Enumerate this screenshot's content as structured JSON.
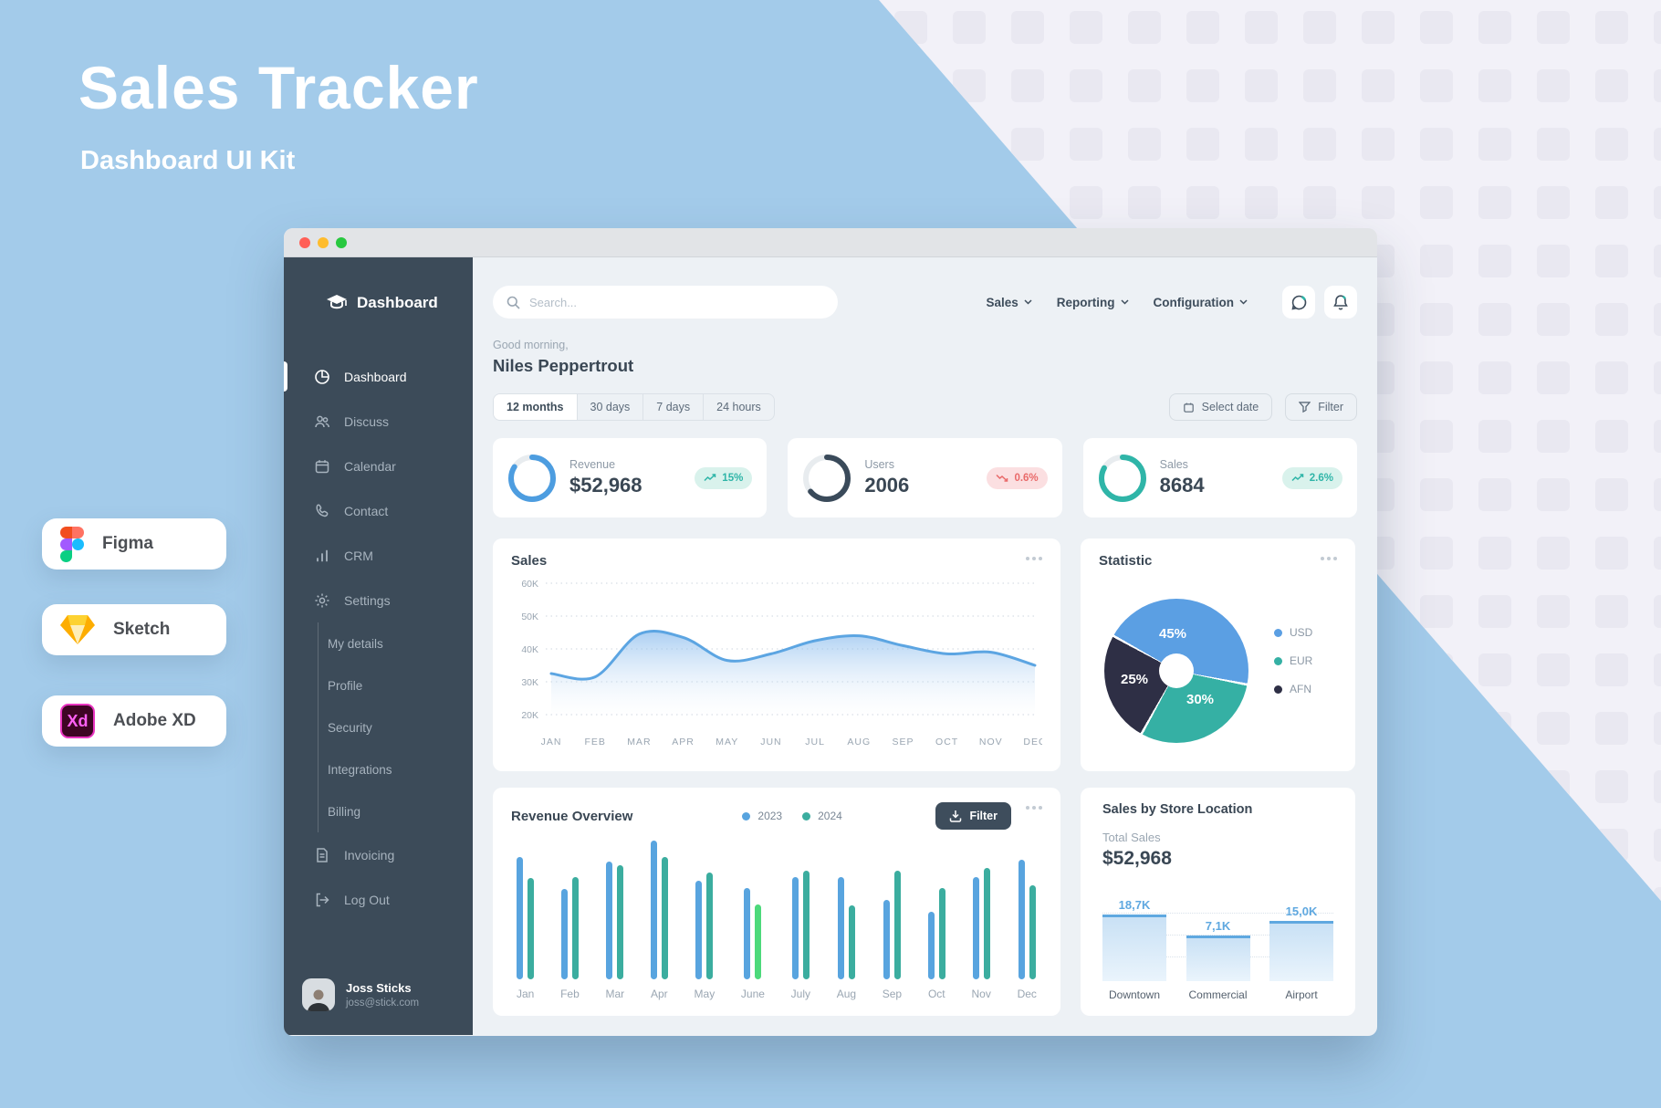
{
  "promo": {
    "title": "Sales Tracker",
    "subtitle": "Dashboard UI Kit",
    "badges": [
      {
        "label": "Figma"
      },
      {
        "label": "Sketch"
      },
      {
        "label": "Adobe XD",
        "logo_text": "Xd"
      }
    ]
  },
  "colors": {
    "accent_blue": "#4D9DE0",
    "teal": "#2FB5A8",
    "sidebar_dark": "#3C4B59",
    "highlight_green": "#4CD97B",
    "negative_red": "#E96A6A",
    "traffic_red": "#FF5F57",
    "traffic_yellow": "#FEBC2E",
    "traffic_green": "#28C840"
  },
  "window": {
    "sidebar": {
      "logo": "Dashboard",
      "items": [
        {
          "label": "Dashboard",
          "icon": "pie-chart-icon",
          "active": true
        },
        {
          "label": "Discuss",
          "icon": "users-icon"
        },
        {
          "label": "Calendar",
          "icon": "calendar-icon"
        },
        {
          "label": "Contact",
          "icon": "phone-icon"
        },
        {
          "label": "CRM",
          "icon": "bar-chart-icon"
        },
        {
          "label": "Settings",
          "icon": "gear-icon"
        }
      ],
      "sub_items": [
        {
          "label": "My details"
        },
        {
          "label": "Profile"
        },
        {
          "label": "Security"
        },
        {
          "label": "Integrations"
        },
        {
          "label": "Billing"
        }
      ],
      "bottom_items": [
        {
          "label": "Invoicing",
          "icon": "invoice-icon"
        },
        {
          "label": "Log Out",
          "icon": "logout-icon"
        }
      ],
      "user": {
        "name": "Joss Sticks",
        "email": "joss@stick.com"
      }
    },
    "topbar": {
      "search_placeholder": "Search...",
      "nav": [
        {
          "label": "Sales"
        },
        {
          "label": "Reporting"
        },
        {
          "label": "Configuration"
        }
      ]
    },
    "greeting": {
      "small": "Good morning,",
      "name": "Niles Peppertrout"
    },
    "range_tabs": [
      {
        "label": "12 months",
        "active": true
      },
      {
        "label": "30 days"
      },
      {
        "label": "7 days"
      },
      {
        "label": "24 hours"
      }
    ],
    "actions": {
      "select_date": "Select date",
      "filter": "Filter"
    },
    "kpis": [
      {
        "label": "Revenue",
        "value": "$52,968",
        "delta": "15%",
        "trend": "up",
        "ring_color": "#4D9DE0",
        "progress": 0.84
      },
      {
        "label": "Users",
        "value": "2006",
        "delta": "0.6%",
        "trend": "down",
        "ring_color": "#3A4A5A",
        "progress": 0.64
      },
      {
        "label": "Sales",
        "value": "8684",
        "delta": "2.6%",
        "trend": "up",
        "ring_color": "#2FB5A8",
        "progress": 0.83
      }
    ],
    "cards": {
      "sales_title": "Sales",
      "statistic_title": "Statistic",
      "revenue_title": "Revenue Overview",
      "revenue_filter": "Filter",
      "store_title": "Sales by Store Location",
      "store_subtitle": "Total Sales",
      "store_total": "$52,968"
    }
  },
  "chart_data": [
    {
      "type": "area",
      "title": "Sales",
      "categories": [
        "JAN",
        "FEB",
        "MAR",
        "APR",
        "MAY",
        "JUN",
        "JUL",
        "AUG",
        "SEP",
        "OCT",
        "NOV",
        "DEC"
      ],
      "values": [
        32.5,
        31.5,
        44.5,
        43.5,
        36.5,
        38.5,
        42.5,
        44,
        41,
        38.5,
        39,
        35
      ],
      "unit": "K",
      "ylim": [
        20,
        60
      ],
      "yticks": [
        "60K",
        "50K",
        "40K",
        "30K",
        "20K"
      ],
      "grid": "dotted",
      "line_color": "#5CA5E2"
    },
    {
      "type": "pie",
      "title": "Statistic",
      "slices": [
        {
          "label": "45%",
          "name": "USD",
          "value": 45,
          "color": "#5B9FE3"
        },
        {
          "label": "30%",
          "name": "EUR",
          "value": 30,
          "color": "#35B0A4"
        },
        {
          "label": "25%",
          "name": "AFN",
          "value": 25,
          "color": "#2E2F45"
        }
      ],
      "legend_position": "right"
    },
    {
      "type": "bar",
      "title": "Revenue Overview",
      "categories": [
        "Jan",
        "Feb",
        "Mar",
        "Apr",
        "May",
        "June",
        "July",
        "Aug",
        "Sep",
        "Oct",
        "Nov",
        "Dec"
      ],
      "series": [
        {
          "name": "2023",
          "color": "#58A4DF",
          "values": [
            88,
            65,
            85,
            100,
            71,
            66,
            74,
            74,
            57,
            49,
            74,
            86
          ]
        },
        {
          "name": "2024",
          "color": "#3BAD9F",
          "values": [
            73,
            74,
            82,
            88,
            77,
            54,
            78,
            53,
            78,
            66,
            80,
            68
          ]
        }
      ],
      "highlight": {
        "series": "2024",
        "category": "June",
        "color": "#4CD97B"
      }
    },
    {
      "type": "bar",
      "title": "Sales by Store Location",
      "categories": [
        "Downtown",
        "Commercial",
        "Airport"
      ],
      "values": [
        18.7,
        7.1,
        15.0
      ],
      "value_labels": [
        "18,7K",
        "7,1K",
        "15,0K"
      ],
      "total": "$52,968"
    }
  ]
}
